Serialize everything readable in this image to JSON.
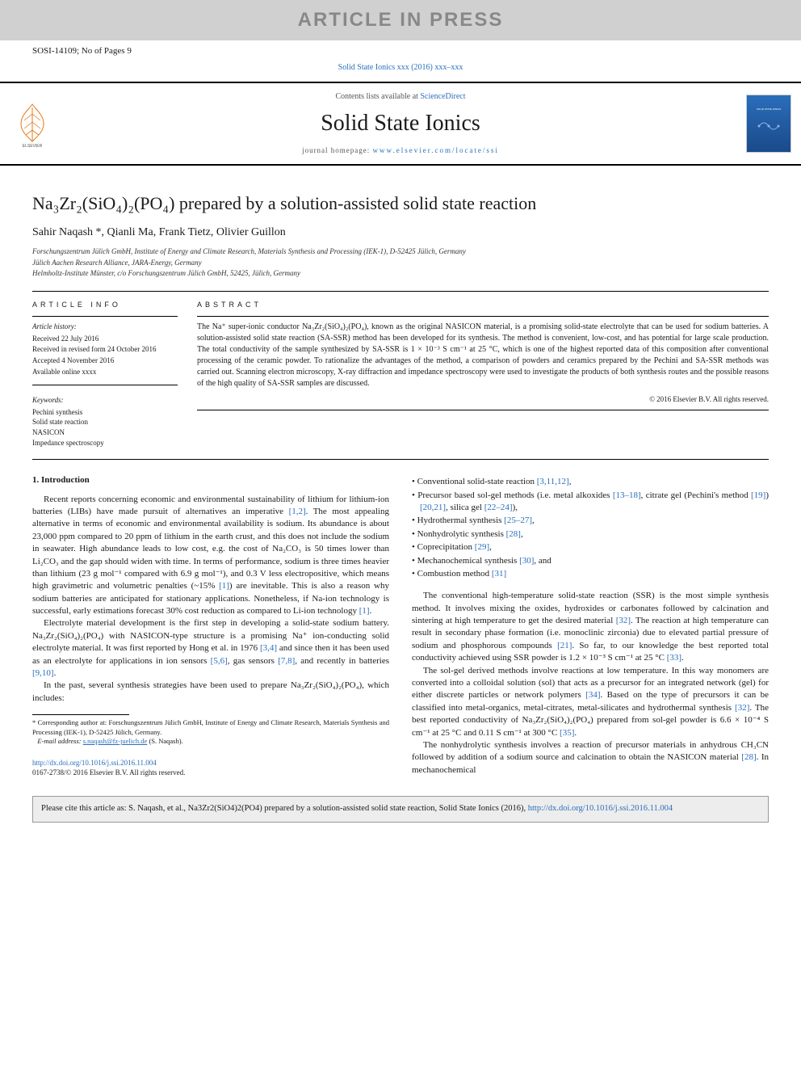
{
  "banner": {
    "text": "ARTICLE IN PRESS"
  },
  "ms_id": "SOSI-14109; No of Pages 9",
  "journal_ref": "Solid State Ionics xxx (2016) xxx–xxx",
  "header": {
    "contents_prefix": "Contents lists available at ",
    "contents_link": "ScienceDirect",
    "journal": "Solid State Ionics",
    "homepage_prefix": "journal homepage: ",
    "homepage_url": "www.elsevier.com/locate/ssi",
    "cover_label": "SOLID STATE IONICS"
  },
  "title": "Na₃Zr₂(SiO₄)₂(PO₄) prepared by a solution-assisted solid state reaction",
  "authors": "Sahir Naqash *, Qianli Ma, Frank Tietz, Olivier Guillon",
  "affiliations": [
    "Forschungszentrum Jülich GmbH, Institute of Energy and Climate Research, Materials Synthesis and Processing (IEK-1), D-52425 Jülich, Germany",
    "Jülich Aachen Research Alliance, JARA-Energy, Germany",
    "Helmholtz-Institute Münster, c/o Forschungszentrum Jülich GmbH, 52425, Jülich, Germany"
  ],
  "article_info": {
    "heading": "article info",
    "history_label": "Article history:",
    "history": [
      "Received 22 July 2016",
      "Received in revised form 24 October 2016",
      "Accepted 4 November 2016",
      "Available online xxxx"
    ],
    "keywords_label": "Keywords:",
    "keywords": [
      "Pechini synthesis",
      "Solid state reaction",
      "NASICON",
      "Impedance spectroscopy"
    ]
  },
  "abstract": {
    "heading": "abstract",
    "text": "The Na⁺ super-ionic conductor Na₃Zr₂(SiO₄)₂(PO₄), known as the original NASICON material, is a promising solid-state electrolyte that can be used for sodium batteries. A solution-assisted solid state reaction (SA-SSR) method has been developed for its synthesis. The method is convenient, low-cost, and has potential for large scale production. The total conductivity of the sample synthesized by SA-SSR is 1 × 10⁻³ S cm⁻¹ at 25 °C, which is one of the highest reported data of this composition after conventional processing of the ceramic powder. To rationalize the advantages of the method, a comparison of powders and ceramics prepared by the Pechini and SA-SSR methods was carried out. Scanning electron microscopy, X-ray diffraction and impedance spectroscopy were used to investigate the products of both synthesis routes and the possible reasons of the high quality of SA-SSR samples are discussed.",
    "copyright": "© 2016 Elsevier B.V. All rights reserved."
  },
  "body": {
    "intro_heading": "1. Introduction",
    "left_paragraphs": [
      "Recent reports concerning economic and environmental sustainability of lithium for lithium-ion batteries (LIBs) have made pursuit of alternatives an imperative [1,2]. The most appealing alternative in terms of economic and environmental availability is sodium. Its abundance is about 23,000 ppm compared to 20 ppm of lithium in the earth crust, and this does not include the sodium in seawater. High abundance leads to low cost, e.g. the cost of Na₂CO₃ is 50 times lower than Li₂CO₃ and the gap should widen with time. In terms of performance, sodium is three times heavier than lithium (23 g mol⁻¹ compared with 6.9 g mol⁻¹), and 0.3 V less electropositive, which means high gravimetric and volumetric penalties (~15% [1]) are inevitable. This is also a reason why sodium batteries are anticipated for stationary applications. Nonetheless, if Na-ion technology is successful, early estimations forecast 30% cost reduction as compared to Li-ion technology [1].",
      "Electrolyte material development is the first step in developing a solid-state sodium battery. Na₃Zr₂(SiO₄)₂(PO₄) with NASICON-type structure is a promising Na⁺ ion-conducting solid electrolyte material. It was first reported by Hong et al. in 1976 [3,4] and since then it has been used as an electrolyte for applications in ion sensors [5,6], gas sensors [7,8], and recently in batteries [9,10].",
      "In the past, several synthesis strategies have been used to prepare Na₃Zr₂(SiO₄)₂(PO₄), which includes:"
    ],
    "right_list": [
      "Conventional solid-state reaction [3,11,12],",
      "Precursor based sol-gel methods (i.e. metal alkoxides [13–18], citrate gel (Pechini's method [19]) [20,21], silica gel [22–24]),",
      "Hydrothermal synthesis [25–27],",
      "Nonhydrolytic synthesis [28],",
      "Coprecipitation [29],",
      "Mechanochemical synthesis [30], and",
      "Combustion method [31]"
    ],
    "right_paragraphs": [
      "The conventional high-temperature solid-state reaction (SSR) is the most simple synthesis method. It involves mixing the oxides, hydroxides or carbonates followed by calcination and sintering at high temperature to get the desired material [32]. The reaction at high temperature can result in secondary phase formation (i.e. monoclinic zirconia) due to elevated partial pressure of sodium and phosphorous compounds [21]. So far, to our knowledge the best reported total conductivity achieved using SSR powder is 1.2 × 10⁻³ S cm⁻¹ at 25 °C [33].",
      "The sol-gel derived methods involve reactions at low temperature. In this way monomers are converted into a colloidal solution (sol) that acts as a precursor for an integrated network (gel) for either discrete particles or network polymers [34]. Based on the type of precursors it can be classified into metal-organics, metal-citrates, metal-silicates and hydrothermal synthesis [32]. The best reported conductivity of Na₃Zr₂(SiO₄)₂(PO₄) prepared from sol-gel powder is 6.6 × 10⁻⁴ S cm⁻¹ at 25 °C and 0.11 S cm⁻¹ at 300 °C [35].",
      "The nonhydrolytic synthesis involves a reaction of precursor materials in anhydrous CH₃CN followed by addition of a sodium source and calcination to obtain the NASICON material [28]. In mechanochemical"
    ]
  },
  "footnote": {
    "marker": "*",
    "line1": "Corresponding author at: Forschungszentrum Jülich GmbH, Institute of Energy and Climate Research, Materials Synthesis and Processing (IEK-1), D-52425 Jülich, Germany.",
    "email_label": "E-mail address:",
    "email": "s.naqash@fz-juelich.de",
    "email_who": "(S. Naqash)."
  },
  "doi": {
    "url": "http://dx.doi.org/10.1016/j.ssi.2016.11.004",
    "issn_line": "0167-2738/© 2016 Elsevier B.V. All rights reserved."
  },
  "cite_box": {
    "text": "Please cite this article as: S. Naqash, et al., Na3Zr2(SiO4)2(PO4) prepared by a solution-assisted solid state reaction, Solid State Ionics (2016), ",
    "url": "http://dx.doi.org/10.1016/j.ssi.2016.11.004"
  },
  "colors": {
    "link": "#2a6ebb",
    "banner_bg": "#d0d0d0",
    "banner_text": "#888888",
    "cite_bg": "#ededed"
  }
}
